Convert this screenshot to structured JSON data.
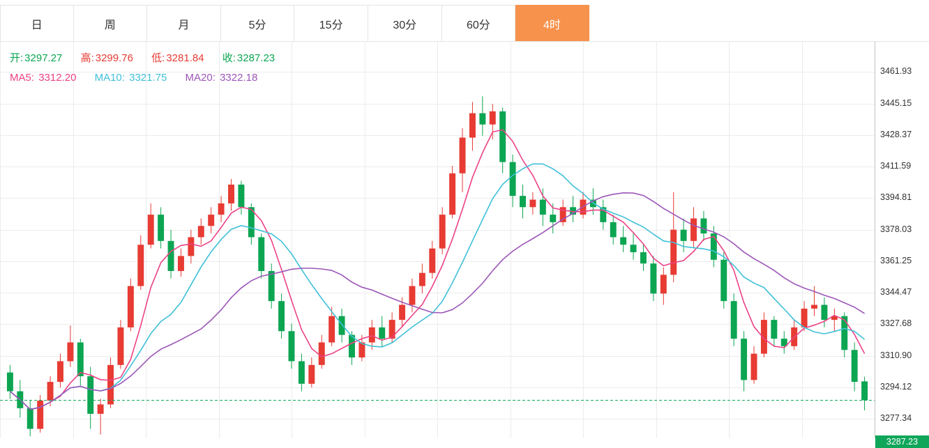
{
  "tabs": {
    "items": [
      {
        "id": "day",
        "label": "日",
        "active": false
      },
      {
        "id": "week",
        "label": "周",
        "active": false
      },
      {
        "id": "month",
        "label": "月",
        "active": false
      },
      {
        "id": "5m",
        "label": "5分",
        "active": false
      },
      {
        "id": "15m",
        "label": "15分",
        "active": false
      },
      {
        "id": "30m",
        "label": "30分",
        "active": false
      },
      {
        "id": "60m",
        "label": "60分",
        "active": false
      },
      {
        "id": "4h",
        "label": "4时",
        "active": true
      }
    ]
  },
  "legend": {
    "open_label": "开:",
    "open_value": "3297.27",
    "high_label": "高:",
    "high_value": "3299.76",
    "low_label": "低:",
    "low_value": "3281.84",
    "close_label": "收:",
    "close_value": "3287.23",
    "ma5_label": "MA5:",
    "ma5_value": "3312.20",
    "ma10_label": "MA10:",
    "ma10_value": "3321.75",
    "ma20_label": "MA20:",
    "ma20_value": "3322.18"
  },
  "colors": {
    "up": "#e73b33",
    "down": "#0ca552",
    "ma5": "#ec4186",
    "ma10": "#3fc0d8",
    "ma20": "#9c56b8",
    "grid": "#ececec",
    "badge": "#0fa65a",
    "active_tab": "#f7924c"
  },
  "axis": {
    "ticks": [
      "3461.93",
      "3445.15",
      "3428.37",
      "3411.59",
      "3394.81",
      "3378.03",
      "3361.25",
      "3344.47",
      "3327.68",
      "3310.90",
      "3294.12",
      "3277.34"
    ],
    "price_max": 3478,
    "price_min": 3267
  },
  "chart_data": {
    "type": "candlestick",
    "interval_selected": "4时",
    "last_price": 3287.23,
    "last_price_label": "3287.23",
    "ohlc_display": {
      "open": "3297.27",
      "high": "3299.76",
      "low": "3281.84",
      "close": "3287.23"
    },
    "ma_display": {
      "MA5": "3312.20",
      "MA10": "3321.75",
      "MA20": "3322.18"
    },
    "ma_windows": [
      5,
      10,
      20
    ],
    "y_range": [
      3267,
      3478
    ],
    "grid": true,
    "legend_position": "top-left",
    "candles": [
      [
        3302,
        3306,
        3288,
        3292
      ],
      [
        3292,
        3298,
        3278,
        3283
      ],
      [
        3283,
        3287,
        3268,
        3272
      ],
      [
        3272,
        3290,
        3270,
        3287
      ],
      [
        3287,
        3300,
        3284,
        3297
      ],
      [
        3297,
        3312,
        3294,
        3308
      ],
      [
        3308,
        3327,
        3305,
        3318
      ],
      [
        3318,
        3320,
        3295,
        3300
      ],
      [
        3300,
        3305,
        3272,
        3280
      ],
      [
        3280,
        3288,
        3269,
        3285
      ],
      [
        3285,
        3310,
        3283,
        3306
      ],
      [
        3306,
        3330,
        3304,
        3326
      ],
      [
        3326,
        3352,
        3324,
        3348
      ],
      [
        3348,
        3375,
        3346,
        3370
      ],
      [
        3370,
        3392,
        3368,
        3386
      ],
      [
        3386,
        3390,
        3368,
        3372
      ],
      [
        3372,
        3378,
        3352,
        3356
      ],
      [
        3356,
        3368,
        3353,
        3364
      ],
      [
        3364,
        3378,
        3360,
        3374
      ],
      [
        3374,
        3384,
        3370,
        3380
      ],
      [
        3380,
        3390,
        3376,
        3386
      ],
      [
        3386,
        3396,
        3382,
        3392
      ],
      [
        3392,
        3405,
        3388,
        3402
      ],
      [
        3402,
        3404,
        3386,
        3390
      ],
      [
        3390,
        3392,
        3370,
        3374
      ],
      [
        3374,
        3376,
        3352,
        3356
      ],
      [
        3356,
        3360,
        3336,
        3340
      ],
      [
        3340,
        3344,
        3320,
        3324
      ],
      [
        3324,
        3328,
        3304,
        3308
      ],
      [
        3308,
        3312,
        3292,
        3296
      ],
      [
        3296,
        3310,
        3294,
        3306
      ],
      [
        3306,
        3322,
        3304,
        3318
      ],
      [
        3318,
        3337,
        3316,
        3332
      ],
      [
        3332,
        3336,
        3318,
        3322
      ],
      [
        3322,
        3324,
        3306,
        3310
      ],
      [
        3310,
        3322,
        3308,
        3318
      ],
      [
        3318,
        3330,
        3314,
        3326
      ],
      [
        3326,
        3332,
        3316,
        3320
      ],
      [
        3320,
        3334,
        3318,
        3330
      ],
      [
        3330,
        3342,
        3326,
        3338
      ],
      [
        3338,
        3352,
        3334,
        3348
      ],
      [
        3348,
        3360,
        3344,
        3355
      ],
      [
        3355,
        3372,
        3352,
        3368
      ],
      [
        3368,
        3390,
        3365,
        3386
      ],
      [
        3386,
        3412,
        3384,
        3408
      ],
      [
        3408,
        3432,
        3398,
        3427
      ],
      [
        3427,
        3446,
        3420,
        3440
      ],
      [
        3440,
        3449,
        3428,
        3434
      ],
      [
        3434,
        3445,
        3426,
        3441
      ],
      [
        3441,
        3443,
        3408,
        3414
      ],
      [
        3414,
        3418,
        3390,
        3396
      ],
      [
        3396,
        3402,
        3384,
        3390
      ],
      [
        3390,
        3398,
        3386,
        3394
      ],
      [
        3394,
        3400,
        3380,
        3386
      ],
      [
        3386,
        3392,
        3376,
        3382
      ],
      [
        3382,
        3394,
        3380,
        3390
      ],
      [
        3390,
        3396,
        3382,
        3386
      ],
      [
        3386,
        3398,
        3384,
        3394
      ],
      [
        3394,
        3400,
        3386,
        3390
      ],
      [
        3390,
        3394,
        3378,
        3382
      ],
      [
        3382,
        3386,
        3370,
        3374
      ],
      [
        3374,
        3380,
        3366,
        3370
      ],
      [
        3370,
        3376,
        3362,
        3366
      ],
      [
        3366,
        3370,
        3356,
        3360
      ],
      [
        3360,
        3364,
        3340,
        3344
      ],
      [
        3344,
        3358,
        3338,
        3354
      ],
      [
        3354,
        3398,
        3350,
        3378
      ],
      [
        3378,
        3384,
        3366,
        3372
      ],
      [
        3372,
        3390,
        3368,
        3384
      ],
      [
        3384,
        3388,
        3372,
        3376
      ],
      [
        3376,
        3380,
        3358,
        3362
      ],
      [
        3362,
        3366,
        3336,
        3340
      ],
      [
        3340,
        3344,
        3316,
        3320
      ],
      [
        3320,
        3324,
        3292,
        3298
      ],
      [
        3298,
        3316,
        3296,
        3312
      ],
      [
        3312,
        3334,
        3310,
        3330
      ],
      [
        3330,
        3332,
        3316,
        3320
      ],
      [
        3320,
        3324,
        3312,
        3316
      ],
      [
        3316,
        3330,
        3314,
        3326
      ],
      [
        3326,
        3340,
        3324,
        3336
      ],
      [
        3336,
        3348,
        3332,
        3338
      ],
      [
        3338,
        3342,
        3326,
        3330
      ],
      [
        3330,
        3336,
        3324,
        3332
      ],
      [
        3332,
        3334,
        3310,
        3314
      ],
      [
        3314,
        3318,
        3292,
        3297
      ],
      [
        3297.27,
        3299.76,
        3281.84,
        3287.23
      ]
    ]
  }
}
